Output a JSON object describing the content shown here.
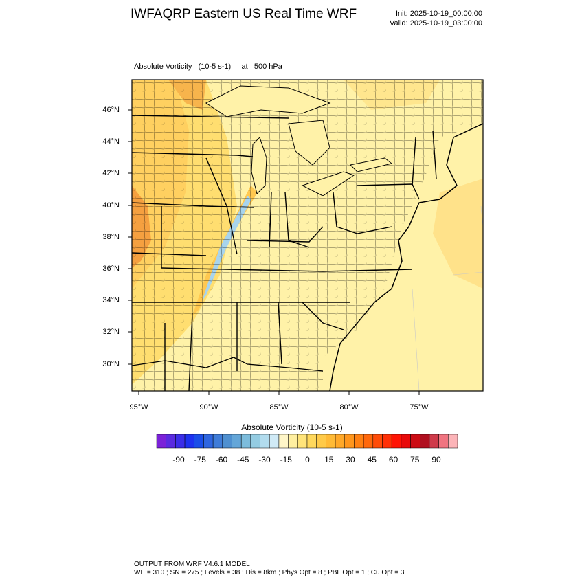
{
  "header": {
    "title": "IWFAQRP Eastern US Real Time WRF",
    "init": "Init: 2025-10-19_00:00:00",
    "valid": "Valid: 2025-10-19_03:00:00"
  },
  "subtitle": "Absolute Vorticity   (10-5 s-1)     at   500 hPa",
  "lat_labels": [
    "46°N",
    "44°N",
    "42°N",
    "40°N",
    "38°N",
    "36°N",
    "34°N",
    "32°N",
    "30°N"
  ],
  "lon_labels": [
    "95°W",
    "90°W",
    "85°W",
    "80°W",
    "75°W"
  ],
  "colorbar": {
    "title": "Absolute Vorticity  (10-5 s-1)",
    "labels": [
      "-90",
      "-75",
      "-60",
      "-45",
      "-30",
      "-15",
      "0",
      "15",
      "30",
      "45",
      "60",
      "75",
      "90"
    ],
    "colors": [
      "#7b22d8",
      "#5a2be0",
      "#3b2ee8",
      "#1e32f0",
      "#1a4ee8",
      "#2f66e0",
      "#3f7cd8",
      "#4f90d0",
      "#64a6d8",
      "#7cbcdc",
      "#94cce2",
      "#b2dcee",
      "#d0eaf6",
      "#fff6c8",
      "#ffefa0",
      "#ffe47a",
      "#ffd85c",
      "#ffca48",
      "#ffba36",
      "#ffa828",
      "#ff961c",
      "#ff8012",
      "#ff680c",
      "#ff4c08",
      "#ff3006",
      "#ff1404",
      "#e80a0a",
      "#cc0c14",
      "#b01020",
      "#cf3a4a",
      "#f07480",
      "#fcb4b8"
    ]
  },
  "footer": {
    "line1": "OUTPUT FROM WRF V4.6.1 MODEL",
    "line2": "WE = 310 ; SN = 275 ; Levels = 38 ; Dis = 8km ; Phys Opt = 8 ; PBL Opt = 1 ; Cu Opt = 3"
  }
}
